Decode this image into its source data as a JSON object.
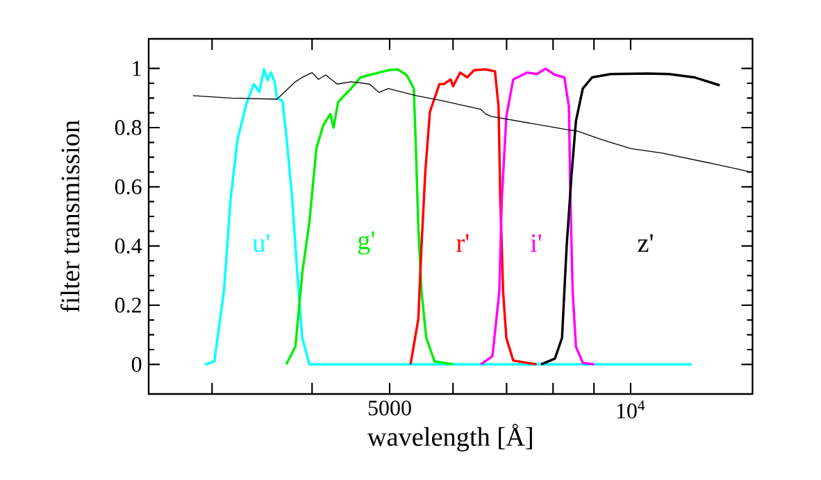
{
  "chart_data": {
    "type": "line",
    "xlabel": "wavelength [Å]",
    "ylabel": "filter transmission",
    "log": "x",
    "xlim": [
      2500,
      14200
    ],
    "ylim": [
      -0.1,
      1.1
    ],
    "xticks": [
      {
        "value": 3000,
        "label": null
      },
      {
        "value": 4000,
        "label": null
      },
      5000,
      {
        "value": 6000,
        "label": null
      },
      {
        "value": 7000,
        "label": null
      },
      {
        "value": 8000,
        "label": null
      },
      {
        "value": 9000,
        "label": null
      },
      {
        "value": 10000,
        "label": "10$^{4}$"
      }
    ],
    "yticks": [
      0,
      0.2,
      0.4,
      0.6,
      0.8,
      1
    ],
    "series": [
      {
        "name": "u'",
        "color": "#00ffff",
        "x": [
          2940,
          3020,
          3105,
          3165,
          3228,
          3316,
          3383,
          3437,
          3484,
          3520,
          3553,
          3592,
          3616,
          3674,
          3714,
          3778,
          3840,
          3890,
          3970,
          11925
        ],
        "values": [
          0,
          0.01,
          0.25,
          0.56,
          0.76,
          0.886,
          0.947,
          0.92,
          0.997,
          0.96,
          0.986,
          0.955,
          0.9,
          0.89,
          0.776,
          0.56,
          0.28,
          0.09,
          0,
          0
        ]
      },
      {
        "name": "g'",
        "color": "#00ee00",
        "x": [
          3714,
          3813,
          3890,
          3970,
          4050,
          4130,
          4215,
          4255,
          4310,
          4385,
          4475,
          4600,
          4720,
          4850,
          4980,
          5115,
          5250,
          5360,
          5395,
          5430,
          5480,
          5555,
          5690,
          6000
        ],
        "values": [
          0,
          0.06,
          0.31,
          0.48,
          0.73,
          0.807,
          0.846,
          0.8,
          0.885,
          0.908,
          0.932,
          0.97,
          0.978,
          0.986,
          0.994,
          0.997,
          0.978,
          0.932,
          0.714,
          0.464,
          0.246,
          0.09,
          0.01,
          0
        ]
      },
      {
        "name": "r'",
        "color": "#ff0000",
        "x": [
          5310,
          5430,
          5480,
          5540,
          5615,
          5770,
          5845,
          5960,
          6000,
          6125,
          6250,
          6375,
          6590,
          6770,
          6840,
          6875,
          6930,
          6995,
          7135,
          7630
        ],
        "values": [
          0,
          0.153,
          0.4,
          0.65,
          0.854,
          0.947,
          0.947,
          0.963,
          0.94,
          0.986,
          0.97,
          0.994,
          0.997,
          0.99,
          0.87,
          0.558,
          0.246,
          0.09,
          0.013,
          0
        ]
      },
      {
        "name": "i'",
        "color": "#ff00ff",
        "x": [
          6500,
          6720,
          6855,
          6905,
          6995,
          7135,
          7430,
          7630,
          7835,
          8045,
          8265,
          8375,
          8410,
          8465,
          8545,
          8715,
          9010
        ],
        "values": [
          0,
          0.028,
          0.246,
          0.558,
          0.838,
          0.963,
          0.986,
          0.981,
          0.999,
          0.978,
          0.97,
          0.87,
          0.558,
          0.246,
          0.06,
          0.005,
          0
        ]
      },
      {
        "name": "z'",
        "color": "#000000",
        "x": [
          7730,
          8045,
          8210,
          8320,
          8435,
          8545,
          8715,
          8955,
          9445,
          10510,
          11160,
          12005,
          12920
        ],
        "values": [
          0,
          0.02,
          0.09,
          0.4,
          0.636,
          0.822,
          0.932,
          0.97,
          0.981,
          0.983,
          0.981,
          0.97,
          0.943
        ]
      },
      {
        "color": "#000000",
        "x": [
          2840,
          3165,
          3616,
          3813,
          3890,
          4000,
          4075,
          4160,
          4300,
          4475,
          4720,
          4850,
          4980,
          5395,
          5770,
          6500,
          6590,
          6700,
          8375,
          8550,
          9195,
          9570,
          10025,
          10940,
          12840,
          14090
        ],
        "values": [
          0.908,
          0.9,
          0.896,
          0.955,
          0.97,
          0.986,
          0.963,
          0.978,
          0.947,
          0.955,
          0.947,
          0.919,
          0.932,
          0.908,
          0.893,
          0.862,
          0.846,
          0.838,
          0.792,
          0.79,
          0.76,
          0.745,
          0.729,
          0.714,
          0.675,
          0.651
        ]
      }
    ]
  }
}
